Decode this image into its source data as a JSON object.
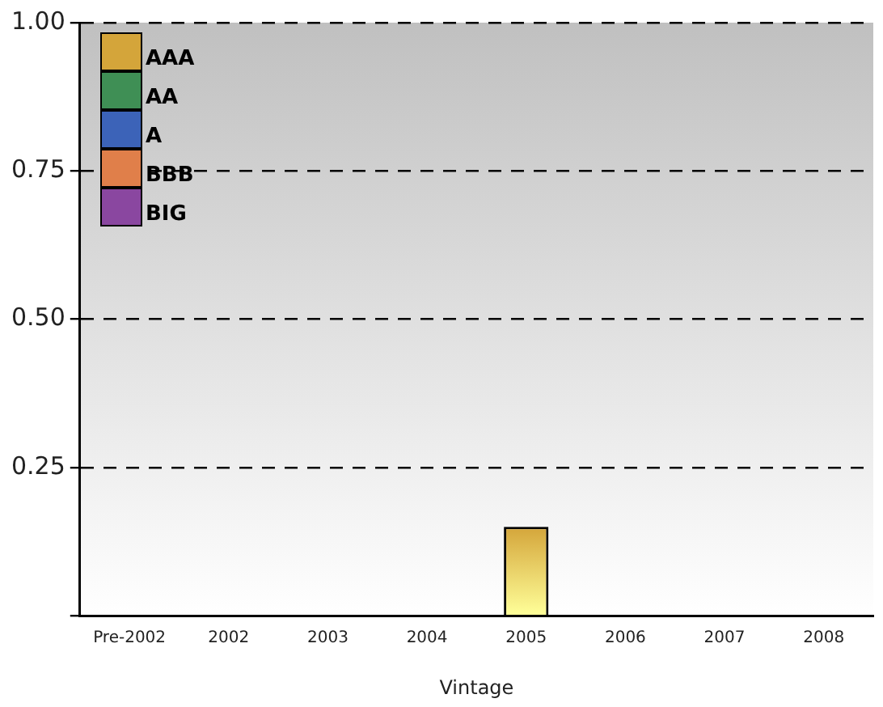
{
  "chart_data": {
    "type": "bar",
    "stacked": true,
    "xlabel": "Vintage",
    "categories": [
      "Pre-2002",
      "2002",
      "2003",
      "2004",
      "2005",
      "2006",
      "2007",
      "2008"
    ],
    "series": [
      {
        "name": "AAA",
        "color": "#d4a53a",
        "values": [
          0,
          0,
          0,
          0,
          0.15,
          0,
          0,
          0
        ]
      },
      {
        "name": "AA",
        "color": "#3f8f55",
        "values": [
          0,
          0,
          0,
          0,
          0,
          0,
          0,
          0
        ]
      },
      {
        "name": "A",
        "color": "#3c63b8",
        "values": [
          0,
          0,
          0,
          0,
          0,
          0,
          0,
          0
        ]
      },
      {
        "name": "BBB",
        "color": "#e07f4a",
        "values": [
          0,
          0,
          0,
          0,
          0,
          0,
          0,
          0
        ]
      },
      {
        "name": "BIG",
        "color": "#8a47a0",
        "values": [
          0,
          0,
          0,
          0,
          0,
          0,
          0,
          0
        ]
      }
    ],
    "ylim": [
      0,
      1
    ],
    "yticks": [
      {
        "value": 0,
        "label": null
      },
      {
        "value": 0.25,
        "label": "0.25"
      },
      {
        "value": 0.5,
        "label": "0.50"
      },
      {
        "value": 0.75,
        "label": "0.75"
      },
      {
        "value": 1,
        "label": "1.00"
      }
    ],
    "grid": "y",
    "legend": "top left"
  }
}
